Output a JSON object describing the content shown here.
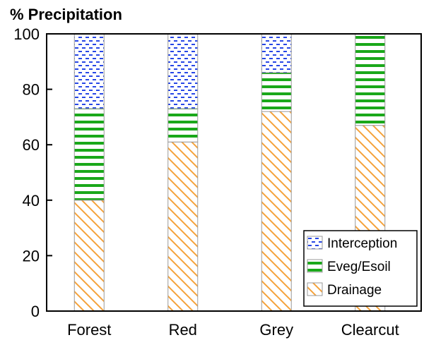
{
  "chart_data": {
    "type": "bar",
    "stacked": true,
    "ylabel": "% Precipitation",
    "ylim": [
      0,
      100
    ],
    "yticks": [
      0,
      20,
      40,
      60,
      80,
      100
    ],
    "categories": [
      "Forest",
      "Red",
      "Grey",
      "Clearcut"
    ],
    "series": [
      {
        "name": "Drainage",
        "values": [
          40,
          61,
          72,
          67
        ],
        "color": "#f5a23a",
        "pattern": "diagonal-hatch"
      },
      {
        "name": "Eveg/Esoil",
        "values": [
          33,
          12,
          14,
          33
        ],
        "color": "#1aa81a",
        "pattern": "horizontal-lines"
      },
      {
        "name": "Interception",
        "values": [
          27,
          27,
          14,
          0
        ],
        "color": "#2747e6",
        "pattern": "dots"
      }
    ],
    "legend": {
      "position": "bottom-right",
      "order": [
        "Interception",
        "Eveg/Esoil",
        "Drainage"
      ]
    },
    "grid": false
  }
}
